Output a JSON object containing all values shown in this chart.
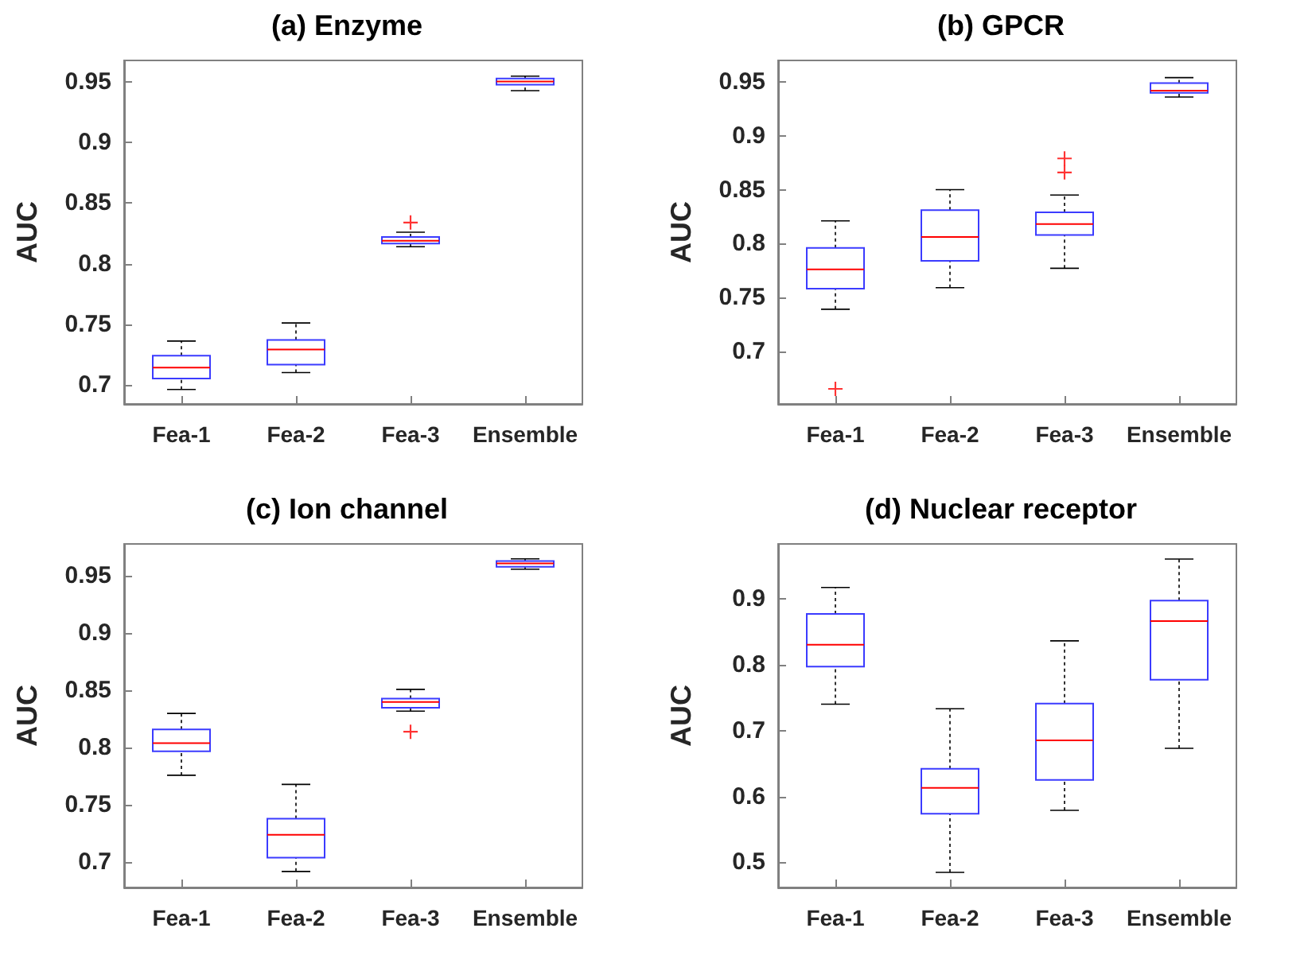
{
  "chart_data": [
    {
      "type": "box",
      "title": "(a) Enzyme",
      "ylabel": "AUC",
      "categories": [
        "Fea-1",
        "Fea-2",
        "Fea-3",
        "Ensemble"
      ],
      "ylim": [
        0.684,
        0.968
      ],
      "yticks": [
        0.7,
        0.75,
        0.8,
        0.85,
        0.9,
        0.95
      ],
      "grid": false,
      "series": [
        {
          "color": "#3b3bff",
          "boxes": [
            {
              "low": 0.696,
              "q1": 0.705,
              "median": 0.714,
              "q3": 0.724,
              "high": 0.736
            },
            {
              "low": 0.71,
              "q1": 0.7165,
              "median": 0.729,
              "q3": 0.737,
              "high": 0.751
            },
            {
              "low": 0.814,
              "q1": 0.8167,
              "median": 0.819,
              "q3": 0.822,
              "high": 0.826,
              "outliers": [
                0.834
              ]
            },
            {
              "low": 0.943,
              "q1": 0.948,
              "median": 0.9505,
              "q3": 0.953,
              "high": 0.955
            }
          ]
        }
      ]
    },
    {
      "type": "box",
      "title": "(b) GPCR",
      "ylabel": "AUC",
      "categories": [
        "Fea-1",
        "Fea-2",
        "Fea-3",
        "Ensemble"
      ],
      "ylim": [
        0.651,
        0.97
      ],
      "yticks": [
        0.7,
        0.75,
        0.8,
        0.85,
        0.9,
        0.95
      ],
      "grid": false,
      "series": [
        {
          "color": "#3b3bff",
          "boxes": [
            {
              "low": 0.739,
              "q1": 0.758,
              "median": 0.776,
              "q3": 0.796,
              "high": 0.821,
              "outliers": [
                0.665
              ]
            },
            {
              "low": 0.759,
              "q1": 0.784,
              "median": 0.806,
              "q3": 0.831,
              "high": 0.85
            },
            {
              "low": 0.777,
              "q1": 0.808,
              "median": 0.818,
              "q3": 0.829,
              "high": 0.845,
              "outliers": [
                0.866,
                0.879
              ]
            },
            {
              "low": 0.936,
              "q1": 0.94,
              "median": 0.942,
              "q3": 0.949,
              "high": 0.954
            }
          ]
        }
      ]
    },
    {
      "type": "box",
      "title": "(c) Ion channel",
      "ylabel": "AUC",
      "categories": [
        "Fea-1",
        "Fea-2",
        "Fea-3",
        "Ensemble"
      ],
      "ylim": [
        0.678,
        0.978
      ],
      "yticks": [
        0.7,
        0.75,
        0.8,
        0.85,
        0.9,
        0.95
      ],
      "grid": false,
      "series": [
        {
          "color": "#3b3bff",
          "boxes": [
            {
              "low": 0.776,
              "q1": 0.797,
              "median": 0.804,
              "q3": 0.816,
              "high": 0.83
            },
            {
              "low": 0.692,
              "q1": 0.704,
              "median": 0.724,
              "q3": 0.738,
              "high": 0.768
            },
            {
              "low": 0.832,
              "q1": 0.835,
              "median": 0.84,
              "q3": 0.843,
              "high": 0.851,
              "outliers": [
                0.814
              ]
            },
            {
              "low": 0.956,
              "q1": 0.958,
              "median": 0.961,
              "q3": 0.963,
              "high": 0.965
            }
          ]
        }
      ]
    },
    {
      "type": "box",
      "title": "(d) Nuclear receptor",
      "ylabel": "AUC",
      "categories": [
        "Fea-1",
        "Fea-2",
        "Fea-3",
        "Ensemble"
      ],
      "ylim": [
        0.462,
        0.983
      ],
      "yticks": [
        0.5,
        0.6,
        0.7,
        0.8,
        0.9
      ],
      "grid": false,
      "series": [
        {
          "color": "#3b3bff",
          "boxes": [
            {
              "low": 0.74,
              "q1": 0.797,
              "median": 0.83,
              "q3": 0.877,
              "high": 0.917
            },
            {
              "low": 0.485,
              "q1": 0.574,
              "median": 0.613,
              "q3": 0.642,
              "high": 0.733
            },
            {
              "low": 0.579,
              "q1": 0.625,
              "median": 0.685,
              "q3": 0.741,
              "high": 0.836
            },
            {
              "low": 0.673,
              "q1": 0.777,
              "median": 0.866,
              "q3": 0.897,
              "high": 0.96
            }
          ]
        }
      ]
    }
  ]
}
